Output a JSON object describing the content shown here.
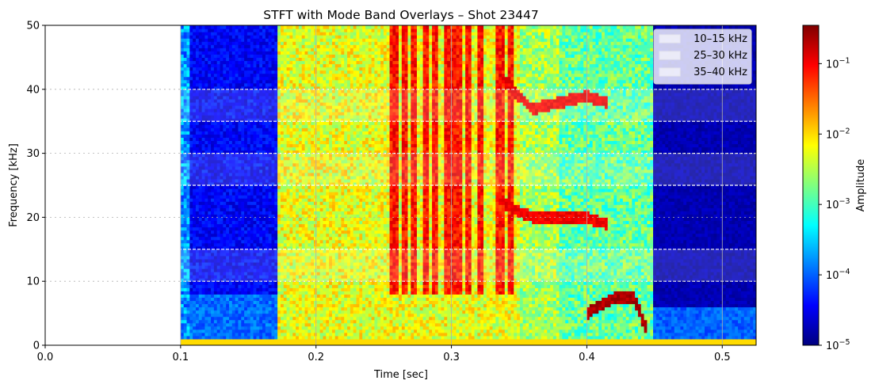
{
  "chart_data": {
    "type": "heatmap",
    "title": "STFT with Mode Band Overlays – Shot 23447",
    "xlabel": "Time [sec]",
    "ylabel": "Frequency [kHz]",
    "xlim": [
      0.0,
      0.525
    ],
    "ylim": [
      0,
      50
    ],
    "x_ticks": [
      "0.0",
      "0.1",
      "0.2",
      "0.3",
      "0.4",
      "0.5"
    ],
    "y_ticks": [
      "0",
      "10",
      "20",
      "30",
      "40",
      "50"
    ],
    "grid": true,
    "data_time_range": [
      0.1,
      0.525
    ],
    "plasma_active_range": [
      0.1,
      0.45
    ],
    "legend": {
      "placement": "top-right",
      "entries": [
        {
          "label": "10–15 kHz",
          "band": [
            10,
            15
          ],
          "color": "#ffffff"
        },
        {
          "label": "25–30 kHz",
          "band": [
            25,
            30
          ],
          "color": "#ffffff"
        },
        {
          "label": "35–40 kHz",
          "band": [
            35,
            40
          ],
          "color": "#ffffff"
        }
      ]
    },
    "colorbar": {
      "label": "Amplitude",
      "scale": "log",
      "colormap": "jet",
      "range": [
        1e-05,
        0.35
      ],
      "ticks": [
        {
          "base": "10",
          "exp": "−5",
          "value": 1e-05
        },
        {
          "base": "10",
          "exp": "−4",
          "value": 0.0001
        },
        {
          "base": "10",
          "exp": "−3",
          "value": 0.001
        },
        {
          "base": "10",
          "exp": "−2",
          "value": 0.01
        },
        {
          "base": "10",
          "exp": "−1",
          "value": 0.1
        }
      ]
    },
    "mode_tracks": [
      {
        "points": [
          [
            0.34,
            22
          ],
          [
            0.36,
            20
          ],
          [
            0.38,
            20
          ],
          [
            0.4,
            20
          ],
          [
            0.415,
            19
          ]
        ],
        "amplitude": 0.15
      },
      {
        "points": [
          [
            0.34,
            41
          ],
          [
            0.36,
            37
          ],
          [
            0.38,
            38
          ],
          [
            0.4,
            39
          ],
          [
            0.415,
            38
          ]
        ],
        "amplitude": 0.15
      },
      {
        "points": [
          [
            0.4,
            5
          ],
          [
            0.42,
            7.5
          ],
          [
            0.435,
            7.5
          ],
          [
            0.445,
            2
          ]
        ],
        "amplitude": 0.3
      }
    ]
  }
}
